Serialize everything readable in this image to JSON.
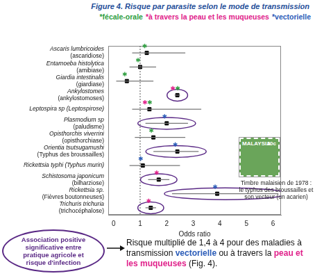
{
  "chart_data": {
    "type": "forest",
    "title": "Figure 4. Risque par parasite selon le mode de transmission",
    "transmission_modes": [
      {
        "name": "*fécale-orale",
        "color": "#2e9e3f"
      },
      {
        "name": "*à travers la peau et les muqueuses",
        "color": "#e0218a"
      },
      {
        "name": "*vectorielle",
        "color": "#2b5cb8"
      }
    ],
    "categories": [
      "Ascaris lumbricoides",
      "Entamoeba histolytica",
      "Giardia intestinalis",
      "Ankylostomes",
      "Leptospira sp (Leptospirose)",
      "Plasmodium sp",
      "Opisthorchis viverrini",
      "Orientia tsutsugamushi",
      "Rickettsia typhi (Typhus murin)",
      "Schistosoma japonicum",
      "Rickettsia sp.",
      "Trichuris trichuria"
    ],
    "diseases": [
      "(ascaridiose)",
      "(amibiase)",
      "(giardiase)",
      "(ankylostomoses)",
      null,
      "(paludisme)",
      "(opisthorchiase)",
      "(Typhus des broussailles)",
      null,
      "(bilharziose)",
      "(Fièvres boutonneuses)",
      "(trichocéphalose)"
    ],
    "values": [
      1.25,
      1.0,
      0.5,
      2.4,
      1.35,
      2.0,
      1.5,
      2.4,
      1.1,
      1.7,
      3.9,
      1.4
    ],
    "ci_low": [
      0.7,
      0.6,
      0.1,
      2.3,
      0.7,
      1.2,
      0.8,
      1.5,
      0.6,
      1.3,
      2.2,
      1.2
    ],
    "ci_high": [
      2.7,
      1.6,
      1.5,
      2.5,
      3.3,
      2.8,
      2.7,
      3.2,
      2.5,
      2.1,
      6.2,
      1.6
    ],
    "star_colors": [
      [
        "#2e9e3f"
      ],
      [
        "#2e9e3f"
      ],
      [
        "#2e9e3f"
      ],
      [
        "#e0218a",
        "#2e9e3f"
      ],
      [
        "#e0218a",
        "#2e9e3f"
      ],
      [
        "#2b5cb8"
      ],
      [
        "#2e9e3f"
      ],
      [
        "#2b5cb8"
      ],
      [
        "#2b5cb8"
      ],
      [
        "#e0218a"
      ],
      [
        "#2b5cb8"
      ],
      [
        "#e0218a"
      ]
    ],
    "highlight": [
      false,
      false,
      false,
      true,
      false,
      true,
      false,
      true,
      false,
      true,
      true,
      true
    ],
    "x_label": "Odds ratio",
    "xlim": [
      -0.2,
      6.3
    ],
    "xticks": [
      0,
      1,
      2,
      3,
      4,
      5,
      6
    ],
    "reference": 1,
    "grid": false,
    "color": "#000000"
  },
  "stamp": {
    "texts": [
      "MALAYSIA",
      "20c"
    ],
    "caption": "Timbre malaisien de 1978 : le typhus des broussailles et son vecteur (un acarien)"
  },
  "callout": "Association positive significative entre pratique agricole et risque d'infection",
  "conclusion": [
    {
      "text": "Risque multiplié de 1,4 à 4 pour des maladies à transmission "
    },
    {
      "text": "vectorielle",
      "color": "#2b5cb8"
    },
    {
      "text": " ou à travers la "
    },
    {
      "text": "peau et les muqueuses",
      "color": "#e0218a"
    },
    {
      "text": " (Fig. 4)."
    }
  ]
}
